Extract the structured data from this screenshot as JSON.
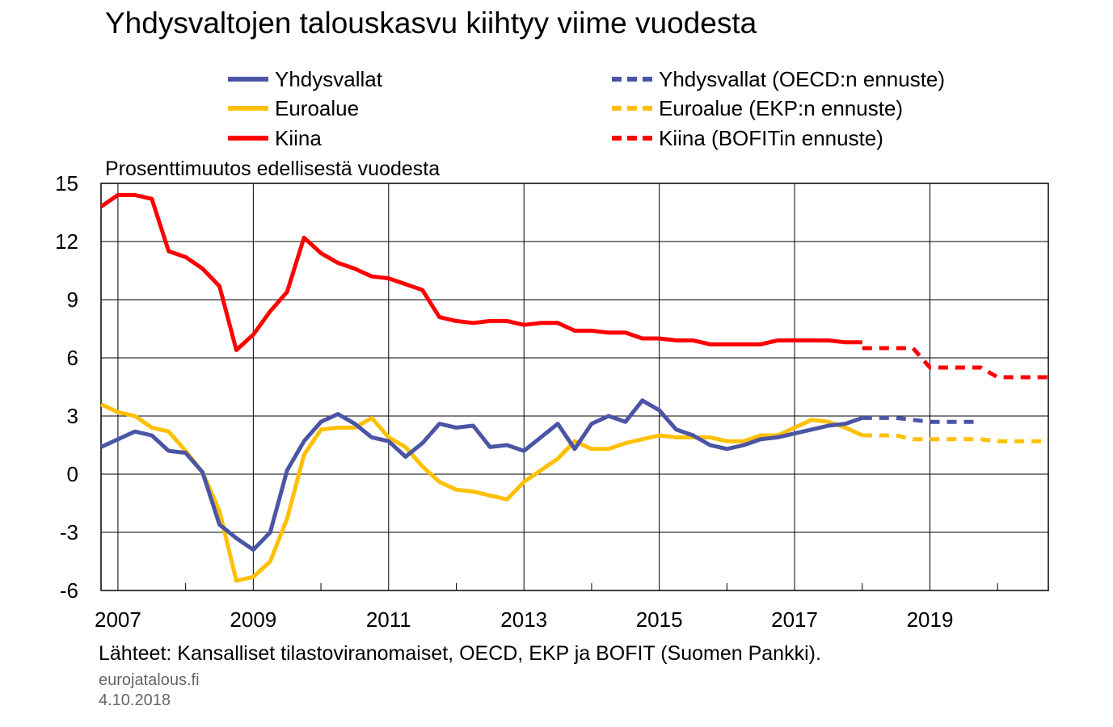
{
  "chart_data": {
    "type": "line",
    "title": "Yhdysvaltojen talouskasvu kiihtyy viime vuodesta",
    "ylabel": "Prosenttimuutos edellisestä vuodesta",
    "ylim": [
      -6,
      15
    ],
    "xlim": [
      2006.75,
      2020.75
    ],
    "yticks": [
      "15",
      "12",
      "9",
      "6",
      "3",
      "0",
      "-3",
      "-6"
    ],
    "ytick_values": [
      15,
      12,
      9,
      6,
      3,
      0,
      -3,
      -6
    ],
    "xticks": [
      "2007",
      "2009",
      "2011",
      "2013",
      "2015",
      "2017",
      "2019"
    ],
    "xtick_values": [
      2007,
      2009,
      2011,
      2013,
      2015,
      2017,
      2019
    ],
    "grid": true,
    "legend_position": "top",
    "series": [
      {
        "name": "Yhdysvallat",
        "color": "#4b55a5",
        "style": "solid",
        "x": [
          2006.75,
          2007,
          2007.25,
          2007.5,
          2007.75,
          2008,
          2008.25,
          2008.5,
          2008.75,
          2009,
          2009.25,
          2009.5,
          2009.75,
          2010,
          2010.25,
          2010.5,
          2010.75,
          2011,
          2011.25,
          2011.5,
          2011.75,
          2012,
          2012.25,
          2012.5,
          2012.75,
          2013,
          2013.25,
          2013.5,
          2013.75,
          2014,
          2014.25,
          2014.5,
          2014.75,
          2015,
          2015.25,
          2015.5,
          2015.75,
          2016,
          2016.25,
          2016.5,
          2016.75,
          2017,
          2017.25,
          2017.5,
          2017.75,
          2018
        ],
        "y": [
          1.4,
          1.8,
          2.2,
          2.0,
          1.2,
          1.1,
          0.1,
          -2.6,
          -3.3,
          -3.9,
          -3.0,
          0.2,
          1.7,
          2.7,
          3.1,
          2.6,
          1.9,
          1.7,
          0.9,
          1.6,
          2.6,
          2.4,
          2.5,
          1.4,
          1.5,
          1.2,
          1.9,
          2.6,
          1.3,
          2.6,
          3.0,
          2.7,
          3.8,
          3.3,
          2.3,
          2.0,
          1.5,
          1.3,
          1.5,
          1.8,
          1.9,
          2.1,
          2.3,
          2.5,
          2.6,
          2.9
        ]
      },
      {
        "name": "Euroalue",
        "color": "#ffc000",
        "style": "solid",
        "x": [
          2006.75,
          2007,
          2007.25,
          2007.5,
          2007.75,
          2008,
          2008.25,
          2008.5,
          2008.75,
          2009,
          2009.25,
          2009.5,
          2009.75,
          2010,
          2010.25,
          2010.5,
          2010.75,
          2011,
          2011.25,
          2011.5,
          2011.75,
          2012,
          2012.25,
          2012.5,
          2012.75,
          2013,
          2013.25,
          2013.5,
          2013.75,
          2014,
          2014.25,
          2014.5,
          2014.75,
          2015,
          2015.25,
          2015.5,
          2015.75,
          2016,
          2016.25,
          2016.5,
          2016.75,
          2017,
          2017.25,
          2017.5,
          2017.75,
          2018
        ],
        "y": [
          3.6,
          3.2,
          3.0,
          2.4,
          2.2,
          1.2,
          0.1,
          -1.9,
          -5.5,
          -5.3,
          -4.5,
          -2.3,
          1.0,
          2.3,
          2.4,
          2.4,
          2.9,
          1.9,
          1.4,
          0.4,
          -0.4,
          -0.8,
          -0.9,
          -1.1,
          -1.3,
          -0.4,
          0.2,
          0.8,
          1.7,
          1.3,
          1.3,
          1.6,
          1.8,
          2.0,
          1.9,
          1.9,
          1.9,
          1.7,
          1.7,
          2.0,
          2.0,
          2.4,
          2.8,
          2.7,
          2.4,
          2.0
        ]
      },
      {
        "name": "Kiina",
        "color": "#ff0000",
        "style": "solid",
        "x": [
          2006.75,
          2007,
          2007.25,
          2007.5,
          2007.75,
          2008,
          2008.25,
          2008.5,
          2008.75,
          2009,
          2009.25,
          2009.5,
          2009.75,
          2010,
          2010.25,
          2010.5,
          2010.75,
          2011,
          2011.25,
          2011.5,
          2011.75,
          2012,
          2012.25,
          2012.5,
          2012.75,
          2013,
          2013.25,
          2013.5,
          2013.75,
          2014,
          2014.25,
          2014.5,
          2014.75,
          2015,
          2015.25,
          2015.5,
          2015.75,
          2016,
          2016.25,
          2016.5,
          2016.75,
          2017,
          2017.25,
          2017.5,
          2017.75,
          2018
        ],
        "y": [
          13.8,
          14.4,
          14.4,
          14.2,
          11.5,
          11.2,
          10.6,
          9.7,
          6.4,
          7.2,
          8.4,
          9.4,
          12.2,
          11.4,
          10.9,
          10.6,
          10.2,
          10.1,
          9.8,
          9.5,
          8.1,
          7.9,
          7.8,
          7.9,
          7.9,
          7.7,
          7.8,
          7.8,
          7.4,
          7.4,
          7.3,
          7.3,
          7.0,
          7.0,
          6.9,
          6.9,
          6.7,
          6.7,
          6.7,
          6.7,
          6.9,
          6.9,
          6.9,
          6.9,
          6.8,
          6.8
        ]
      },
      {
        "name": "Yhdysvallat (OECD:n ennuste)",
        "color": "#4b55a5",
        "style": "dashed",
        "x": [
          2018,
          2018.25,
          2018.5,
          2018.75,
          2019,
          2019.25,
          2019.5,
          2019.75
        ],
        "y": [
          2.9,
          2.9,
          2.9,
          2.8,
          2.7,
          2.7,
          2.7,
          2.7
        ]
      },
      {
        "name": "Euroalue (EKP:n ennuste)",
        "color": "#ffc000",
        "style": "dashed",
        "x": [
          2018,
          2018.25,
          2018.5,
          2018.75,
          2019,
          2019.25,
          2019.5,
          2019.75,
          2020,
          2020.25,
          2020.5,
          2020.75
        ],
        "y": [
          2.0,
          2.0,
          2.0,
          1.8,
          1.8,
          1.8,
          1.8,
          1.8,
          1.7,
          1.7,
          1.7,
          1.7
        ]
      },
      {
        "name": "Kiina (BOFITin ennuste)",
        "color": "#ff0000",
        "style": "dashed",
        "x": [
          2018,
          2018.5,
          2018.75,
          2019,
          2019.5,
          2019.75,
          2020,
          2020.75
        ],
        "y": [
          6.5,
          6.5,
          6.5,
          5.5,
          5.5,
          5.5,
          5.0,
          5.0
        ]
      }
    ]
  },
  "footer": {
    "source": "Lähteet: Kansalliset tilastoviranomaiset, OECD, EKP ja BOFIT (Suomen Pankki).",
    "site": "eurojatalous.fi",
    "date": "4.10.2018"
  }
}
